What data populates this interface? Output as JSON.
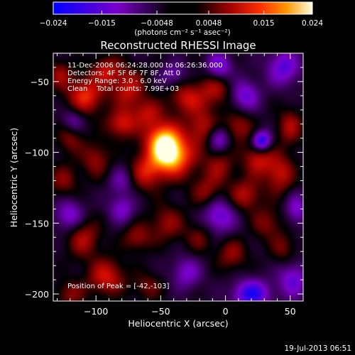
{
  "chart_data": {
    "type": "heatmap",
    "title": "Reconstructed RHESSI Image",
    "xlabel": "Heliocentric X (arcsec)",
    "ylabel": "Heliocentric Y (arcsec)",
    "xlim": [
      -133,
      60
    ],
    "ylim": [
      -205,
      -30
    ],
    "x_ticks": [
      -100,
      -50,
      0,
      50
    ],
    "y_ticks": [
      -50,
      -100,
      -150,
      -200
    ],
    "x_tick_labels": [
      "−100",
      "−50",
      "0",
      "50"
    ],
    "y_tick_labels": [
      "−50",
      "−100",
      "−150",
      "−200"
    ],
    "colorbar": {
      "range": [
        -0.024,
        0.024
      ],
      "ticks": [
        -0.024,
        -0.015,
        -0.0048,
        0.0048,
        0.015,
        0.024
      ],
      "tick_labels": [
        "−0.024",
        "−0.015",
        "−0.0048",
        "0.0048",
        "0.015",
        "0.024"
      ],
      "unit_label": "(photons cm⁻² s⁻¹ asec⁻²)"
    },
    "info_lines": [
      "11-Dec-2006 06:24:28.000 to 06:26:36.000",
      "Detectors: 4F 5F 6F 7F 8F, Att 0",
      "Energy Range: 3.0 - 6.0 keV",
      "Clean    Total counts: 7.99E+03"
    ],
    "peak_label": "Position of Peak = [-42,-103]",
    "peak": {
      "x": -42,
      "y": -103
    },
    "sources": [
      {
        "x": -42,
        "y": -103,
        "sx": 12,
        "sy": 10,
        "a": 0.024
      },
      {
        "x": -48,
        "y": -90,
        "sx": 10,
        "sy": 9,
        "a": 0.018
      },
      {
        "x": -62,
        "y": -115,
        "sx": 9,
        "sy": 9,
        "a": 0.011
      },
      {
        "x": -108,
        "y": -60,
        "sx": 10,
        "sy": 9,
        "a": 0.015
      },
      {
        "x": -92,
        "y": -42,
        "sx": 8,
        "sy": 7,
        "a": 0.011
      },
      {
        "x": -75,
        "y": -55,
        "sx": 9,
        "sy": 10,
        "a": 0.012
      },
      {
        "x": -80,
        "y": -80,
        "sx": 8,
        "sy": 7,
        "a": 0.013
      },
      {
        "x": -60,
        "y": -72,
        "sx": 8,
        "sy": 7,
        "a": 0.01
      },
      {
        "x": -30,
        "y": -62,
        "sx": 9,
        "sy": 8,
        "a": 0.012
      },
      {
        "x": -8,
        "y": -55,
        "sx": 9,
        "sy": 9,
        "a": 0.011
      },
      {
        "x": -18,
        "y": -82,
        "sx": 8,
        "sy": 9,
        "a": 0.011
      },
      {
        "x": 10,
        "y": -82,
        "sx": 8,
        "sy": 8,
        "a": 0.01
      },
      {
        "x": 25,
        "y": -105,
        "sx": 8,
        "sy": 8,
        "a": 0.012
      },
      {
        "x": 42,
        "y": -115,
        "sx": 8,
        "sy": 10,
        "a": 0.012
      },
      {
        "x": 50,
        "y": -82,
        "sx": 7,
        "sy": 9,
        "a": 0.01
      },
      {
        "x": 15,
        "y": -130,
        "sx": 9,
        "sy": 8,
        "a": 0.011
      },
      {
        "x": -15,
        "y": -128,
        "sx": 8,
        "sy": 8,
        "a": 0.009
      },
      {
        "x": -5,
        "y": -110,
        "sx": 8,
        "sy": 8,
        "a": 0.009
      },
      {
        "x": -100,
        "y": -105,
        "sx": 8,
        "sy": 9,
        "a": 0.009
      },
      {
        "x": -120,
        "y": -90,
        "sx": 7,
        "sy": 8,
        "a": 0.008
      },
      {
        "x": -110,
        "y": -160,
        "sx": 9,
        "sy": 10,
        "a": 0.011
      },
      {
        "x": -92,
        "y": -188,
        "sx": 10,
        "sy": 9,
        "a": 0.013
      },
      {
        "x": -68,
        "y": -160,
        "sx": 8,
        "sy": 7,
        "a": 0.009
      },
      {
        "x": -45,
        "y": -150,
        "sx": 9,
        "sy": 9,
        "a": 0.009
      },
      {
        "x": -20,
        "y": -160,
        "sx": 8,
        "sy": 8,
        "a": 0.007
      },
      {
        "x": 5,
        "y": -172,
        "sx": 8,
        "sy": 8,
        "a": 0.009
      },
      {
        "x": 32,
        "y": -150,
        "sx": 8,
        "sy": 8,
        "a": 0.008
      },
      {
        "x": 45,
        "y": -168,
        "sx": 7,
        "sy": 8,
        "a": 0.007
      },
      {
        "x": -125,
        "y": -120,
        "sx": 8,
        "sy": 8,
        "a": 0.008
      },
      {
        "x": -128,
        "y": -45,
        "sx": 7,
        "sy": 7,
        "a": 0.009
      },
      {
        "x": -60,
        "y": -195,
        "sx": 8,
        "sy": 7,
        "a": 0.007
      },
      {
        "x": -120,
        "y": -200,
        "sx": 8,
        "sy": 7,
        "a": 0.008
      },
      {
        "x": -5,
        "y": -40,
        "sx": 7,
        "sy": 7,
        "a": -0.014
      },
      {
        "x": 15,
        "y": -60,
        "sx": 8,
        "sy": 8,
        "a": -0.012
      },
      {
        "x": 45,
        "y": -40,
        "sx": 9,
        "sy": 9,
        "a": -0.013
      },
      {
        "x": 28,
        "y": -92,
        "sx": 5,
        "sy": 5,
        "a": -0.02
      },
      {
        "x": -5,
        "y": -90,
        "sx": 6,
        "sy": 6,
        "a": -0.012
      },
      {
        "x": -120,
        "y": -145,
        "sx": 8,
        "sy": 8,
        "a": -0.012
      },
      {
        "x": -80,
        "y": -140,
        "sx": 7,
        "sy": 7,
        "a": -0.01
      },
      {
        "x": -5,
        "y": -145,
        "sx": 9,
        "sy": 9,
        "a": -0.013
      },
      {
        "x": 20,
        "y": -200,
        "sx": 10,
        "sy": 7,
        "a": -0.018
      },
      {
        "x": 52,
        "y": -190,
        "sx": 8,
        "sy": 9,
        "a": -0.012
      },
      {
        "x": -80,
        "y": -120,
        "sx": 7,
        "sy": 7,
        "a": -0.008
      },
      {
        "x": -40,
        "y": -45,
        "sx": 7,
        "sy": 6,
        "a": -0.008
      },
      {
        "x": -30,
        "y": -185,
        "sx": 8,
        "sy": 8,
        "a": -0.01
      },
      {
        "x": 55,
        "y": -140,
        "sx": 6,
        "sy": 8,
        "a": -0.01
      },
      {
        "x": -118,
        "y": -78,
        "sx": 6,
        "sy": 6,
        "a": -0.009
      }
    ]
  },
  "footer": {
    "timestamp": "19-Jul-2013 06:51"
  }
}
